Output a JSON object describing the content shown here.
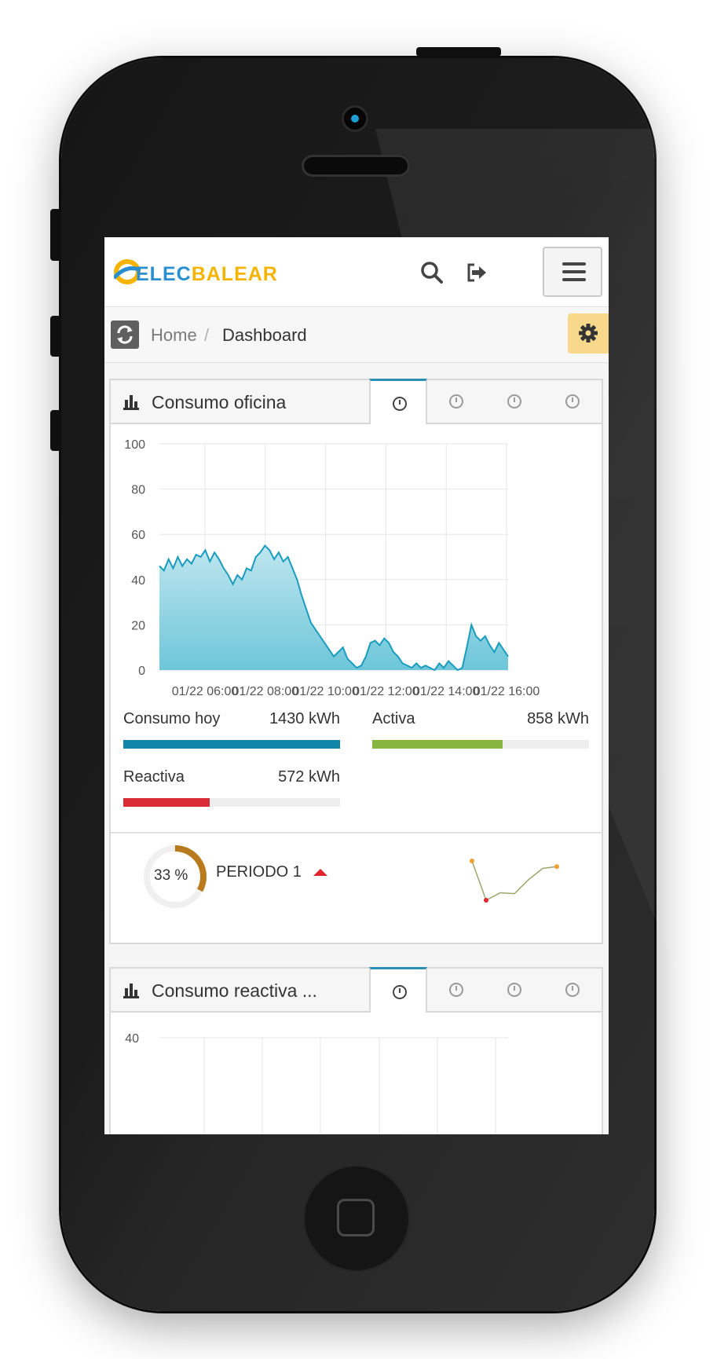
{
  "app": {
    "logo_text_part1": "ELEC",
    "logo_text_part2": "BALEAR",
    "icons": {
      "search": "search-icon",
      "logout": "sign-out-icon",
      "menu": "hamburger-menu-icon",
      "refresh": "refresh-icon",
      "settings": "gear-icon"
    }
  },
  "breadcrumb": {
    "home": "Home",
    "separator": "/",
    "current": "Dashboard"
  },
  "widgets": [
    {
      "title": "Consumo oficina",
      "tabs": [
        "clock-icon",
        "clock-icon",
        "clock-icon",
        "clock-icon"
      ],
      "active_tab": 0,
      "stats": [
        {
          "label": "Consumo hoy",
          "value": "1430 kWh",
          "fill": 1.0,
          "color": "#1185a8"
        },
        {
          "label": "Activa",
          "value": "858 kWh",
          "fill": 0.6,
          "color": "#86b540"
        },
        {
          "label": "Reactiva",
          "value": "572 kWh",
          "fill": 0.4,
          "color": "#d92c36"
        }
      ],
      "period": {
        "percent_label": "33 %",
        "percent": 33,
        "label": "PERIODO 1",
        "trend": "up",
        "donut_color": "#b87a1c",
        "sparkline": [
          56,
          14,
          22,
          21,
          36,
          48,
          50
        ]
      }
    },
    {
      "title": "Consumo reactiva ...",
      "tabs": [
        "clock-icon",
        "clock-icon",
        "clock-icon",
        "clock-icon"
      ],
      "active_tab": 0
    }
  ],
  "chart_data": [
    {
      "type": "area",
      "title": "",
      "xlabel": "",
      "ylabel": "",
      "ylim": [
        0,
        100
      ],
      "yticks": [
        "100",
        "80",
        "60",
        "40",
        "20",
        "0"
      ],
      "xticks": [
        "01/22 06:00",
        "01/22 08:00",
        "01/22 10:00",
        "01/22 12:00",
        "01/22 14:00",
        "01/22 16:00"
      ],
      "grid": true,
      "color": "#1a9cbf",
      "series": [
        {
          "values": [
            46,
            44,
            49,
            45,
            50,
            46,
            49,
            47,
            51,
            50,
            53,
            48,
            52,
            49,
            45,
            42,
            38,
            42,
            40,
            45,
            44,
            50,
            52,
            55,
            53,
            49,
            52,
            48,
            50,
            45,
            40,
            33,
            27,
            21,
            18,
            15,
            12,
            9,
            6,
            8,
            10,
            5,
            3,
            1,
            2,
            6,
            12,
            13,
            11,
            14,
            12,
            8,
            6,
            3,
            2,
            1,
            3,
            1,
            2,
            1,
            0,
            3,
            1,
            4,
            2,
            0,
            1,
            10,
            20,
            15,
            13,
            15,
            11,
            8,
            12,
            9,
            6
          ]
        }
      ]
    },
    {
      "type": "area",
      "title": "",
      "xlabel": "",
      "ylabel": "",
      "yticks_visible": [
        "40"
      ],
      "grid": true
    }
  ]
}
